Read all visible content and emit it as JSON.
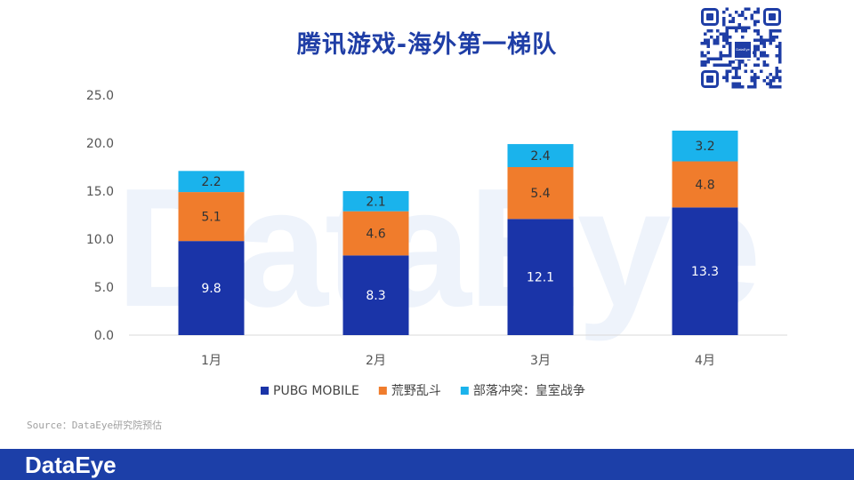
{
  "title": "腾讯游戏-海外第一梯队",
  "watermark": "DataEye",
  "source": "Source：DataEye研究院预估",
  "footer_logo": "DataEye",
  "qr_label": "DataEye",
  "colors": {
    "title": "#1f3ea6",
    "footer": "#1c3fa8"
  },
  "chart_data": {
    "type": "bar",
    "stacked": true,
    "categories": [
      "1月",
      "2月",
      "3月",
      "4月"
    ],
    "series": [
      {
        "name": "PUBG MOBILE",
        "color": "#1a34a8",
        "label_color": "#ffffff",
        "values": [
          9.8,
          8.3,
          12.1,
          13.3
        ]
      },
      {
        "name": "荒野乱斗",
        "color": "#f07c2c",
        "label_color": "#333333",
        "values": [
          5.1,
          4.6,
          5.4,
          4.8
        ]
      },
      {
        "name": "部落冲突：皇室战争",
        "color": "#1ab3ec",
        "label_color": "#333333",
        "values": [
          2.2,
          2.1,
          2.4,
          3.2
        ]
      }
    ],
    "ylim": [
      0,
      25
    ],
    "yticks": [
      "0.0",
      "5.0",
      "10.0",
      "15.0",
      "20.0",
      "25.0"
    ],
    "grid": false,
    "legend_position": "bottom"
  }
}
